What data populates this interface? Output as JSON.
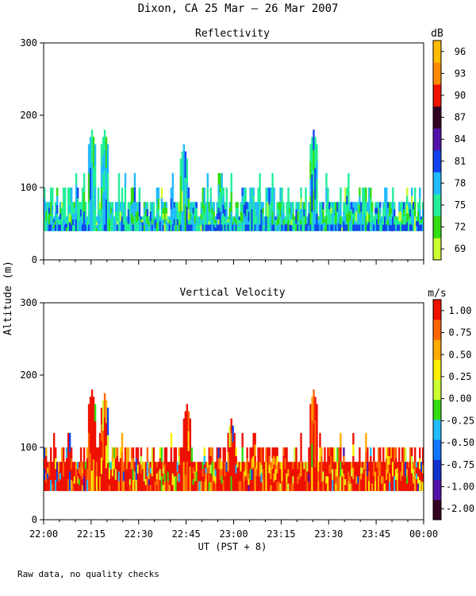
{
  "title": "Dixon, CA 25 Mar – 26 Mar 2007",
  "footnote": "Raw data, no quality checks",
  "chart_data": [
    {
      "type": "heatmap",
      "title": "Reflectivity",
      "ylabel": "Altitude (m)",
      "xlabel": "UT  (PST + 8)",
      "ylim": [
        0,
        300
      ],
      "yticks": [
        "0",
        "100",
        "200",
        "300"
      ],
      "x_range_minutes": [
        0,
        120
      ],
      "xticks": [
        "22:00",
        "22:15",
        "22:30",
        "22:45",
        "23:00",
        "23:15",
        "23:30",
        "23:45",
        "00:00"
      ],
      "colorbar": {
        "unit": "dB",
        "labels": [
          "69",
          "72",
          "75",
          "78",
          "81",
          "84",
          "87",
          "90",
          "93",
          "96"
        ],
        "colors": [
          "#ccff33",
          "#33dd11",
          "#22ee99",
          "#22bbff",
          "#1144ee",
          "#5511aa",
          "#330022",
          "#ee1100",
          "#ff8800",
          "#ffbb00"
        ]
      },
      "data_summary": {
        "base_altitude_m": 40,
        "typical_top_altitude_m": [
          60,
          100
        ],
        "echo_spikes": [
          {
            "time": "22:15",
            "top_m": 180
          },
          {
            "time": "22:19",
            "top_m": 180
          },
          {
            "time": "22:44",
            "top_m": 160
          },
          {
            "time": "23:25",
            "top_m": 180
          }
        ],
        "dominant_colors": [
          "#22ee99",
          "#22bbff",
          "#33dd11",
          "#1144ee"
        ]
      }
    },
    {
      "type": "heatmap",
      "title": "Vertical Velocity",
      "ylabel": "Altitude (m)",
      "xlabel": "UT  (PST + 8)",
      "ylim": [
        0,
        300
      ],
      "yticks": [
        "0",
        "100",
        "200",
        "300"
      ],
      "x_range_minutes": [
        0,
        120
      ],
      "xticks": [
        "22:00",
        "22:15",
        "22:30",
        "22:45",
        "23:00",
        "23:15",
        "23:30",
        "23:45",
        "00:00"
      ],
      "colorbar": {
        "unit": "m/s",
        "labels": [
          "-2.00",
          "-1.00",
          "-0.75",
          "-0.50",
          "-0.25",
          "0.00",
          "0.25",
          "0.50",
          "0.75",
          "1.00"
        ],
        "colors": [
          "#330022",
          "#5511aa",
          "#1133cc",
          "#1177ff",
          "#22bbff",
          "#33dd11",
          "#ccff33",
          "#ffee00",
          "#ffaa00",
          "#ff6600",
          "#ee1100"
        ]
      },
      "data_summary": {
        "base_altitude_m": 40,
        "typical_top_altitude_m": [
          80,
          100
        ],
        "echo_spikes": [
          {
            "time": "22:15",
            "top_m": 180
          },
          {
            "time": "22:19",
            "top_m": 175
          },
          {
            "time": "22:45",
            "top_m": 160
          },
          {
            "time": "22:59",
            "top_m": 140
          },
          {
            "time": "23:25",
            "top_m": 180
          }
        ],
        "dominant_colors": [
          "#ee1100",
          "#ff6600",
          "#ffaa00",
          "#ffee00"
        ]
      }
    }
  ]
}
